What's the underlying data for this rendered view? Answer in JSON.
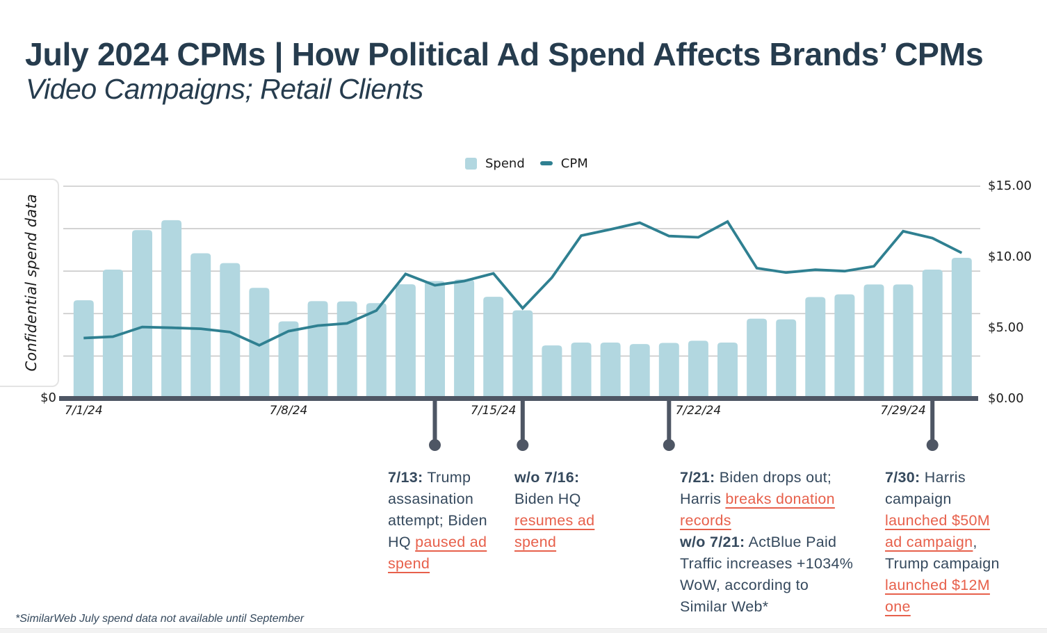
{
  "page": {
    "title": "July 2024 CPMs | How Political Ad Spend Affects Brands’ CPMs",
    "subtitle": "Video Campaigns; Retail Clients",
    "footnote": "*SimilarWeb July spend data not available until September"
  },
  "colors": {
    "title_text": "#263c4e",
    "annotation_text": "#35495d",
    "link": "#e7604b",
    "bar_fill": "#b2d7e0",
    "line_stroke": "#2f8091",
    "axis": "#4e5664",
    "gridline": "#c9c9c9",
    "chart_label_text": "#1c1c1c"
  },
  "legend": {
    "items": [
      {
        "swatch": "bar-swatch",
        "label": "Spend"
      },
      {
        "swatch": "line-swatch",
        "label": "CPM"
      }
    ]
  },
  "y_axis_left": {
    "label": "Confidential spend data",
    "tick": "$0"
  },
  "y_axis_right": {
    "ticks": [
      "$15.00",
      "$10.00",
      "$5.00",
      "$0.00"
    ]
  },
  "x_axis": {
    "ticks": [
      {
        "label": "7/1/24",
        "day": 1
      },
      {
        "label": "7/8/24",
        "day": 8
      },
      {
        "label": "7/15/24",
        "day": 15
      },
      {
        "label": "7/22/24",
        "day": 22
      },
      {
        "label": "7/29/24",
        "day": 29
      }
    ]
  },
  "chart_data": {
    "type": "bar+line",
    "title": "July 2024 CPMs | How Political Ad Spend Affects Brands’ CPMs",
    "subtitle": "Video Campaigns; Retail Clients",
    "x": [
      "7/1/24",
      "7/2/24",
      "7/3/24",
      "7/4/24",
      "7/5/24",
      "7/6/24",
      "7/7/24",
      "7/8/24",
      "7/9/24",
      "7/10/24",
      "7/11/24",
      "7/12/24",
      "7/13/24",
      "7/14/24",
      "7/15/24",
      "7/16/24",
      "7/17/24",
      "7/18/24",
      "7/19/24",
      "7/20/24",
      "7/21/24",
      "7/22/24",
      "7/23/24",
      "7/24/24",
      "7/25/24",
      "7/26/24",
      "7/27/24",
      "7/28/24",
      "7/29/24",
      "7/30/24",
      "7/31/24"
    ],
    "series": [
      {
        "name": "Spend",
        "type": "bar",
        "axis": "left",
        "axis_note": "left spend axis unlabeled (confidential); values are as drawn on the right-axis 0-15 scale",
        "values": [
          6.94,
          9.11,
          11.9,
          12.6,
          10.26,
          9.57,
          7.82,
          5.45,
          6.88,
          6.86,
          6.74,
          8.07,
          8.3,
          8.41,
          7.19,
          6.23,
          3.75,
          3.95,
          3.95,
          3.85,
          3.93,
          4.08,
          3.95,
          5.64,
          5.59,
          7.17,
          7.36,
          8.06,
          8.06,
          9.11,
          9.94
        ]
      },
      {
        "name": "CPM",
        "type": "line",
        "axis": "right",
        "values": [
          4.27,
          4.37,
          5.05,
          5.0,
          4.93,
          4.7,
          3.76,
          4.76,
          5.15,
          5.31,
          6.21,
          8.8,
          8.0,
          8.3,
          8.84,
          6.38,
          8.55,
          11.51,
          11.95,
          12.42,
          11.48,
          11.39,
          12.5,
          9.21,
          8.9,
          9.1,
          9.0,
          9.34,
          11.82,
          11.33,
          10.29
        ]
      }
    ],
    "ylim_right": [
      0,
      15
    ],
    "right_tick_values": [
      15,
      10,
      5,
      0
    ],
    "ylabel_left": "Confidential spend data",
    "grid": "horizontal, 6 lines (5 thin + thick zero axis)",
    "legend_position": "top-center"
  },
  "annotations": [
    {
      "day": 13,
      "segments": [
        {
          "style": "bold",
          "text": "7/13:"
        },
        {
          "style": "plain",
          "text": " Trump\nassasination\nattempt; Biden\nHQ "
        },
        {
          "style": "link",
          "text": "paused ad\nspend"
        }
      ]
    },
    {
      "day": 16,
      "segments": [
        {
          "style": "bold",
          "text": "w/o 7/16:"
        },
        {
          "style": "plain",
          "text": "\nBiden HQ\n"
        },
        {
          "style": "link",
          "text": "resumes ad\nspend"
        }
      ]
    },
    {
      "day": 21,
      "segments": [
        {
          "style": "bold",
          "text": "7/21:"
        },
        {
          "style": "plain",
          "text": " Biden drops out;\nHarris "
        },
        {
          "style": "link",
          "text": "breaks donation\nrecords"
        },
        {
          "style": "plain",
          "text": "\n"
        },
        {
          "style": "bold",
          "text": "w/o 7/21:"
        },
        {
          "style": "plain",
          "text": " ActBlue Paid\nTraffic increases +1034%\nWoW, according to\nSimilar Web*"
        }
      ]
    },
    {
      "day": 30,
      "segments": [
        {
          "style": "bold",
          "text": "7/30:"
        },
        {
          "style": "plain",
          "text": " Harris\ncampaign\n"
        },
        {
          "style": "link",
          "text": "launched $50M\nad campaign"
        },
        {
          "style": "plain",
          "text": ",\nTrump campaign\n"
        },
        {
          "style": "link",
          "text": "launched $12M\none"
        }
      ]
    }
  ]
}
